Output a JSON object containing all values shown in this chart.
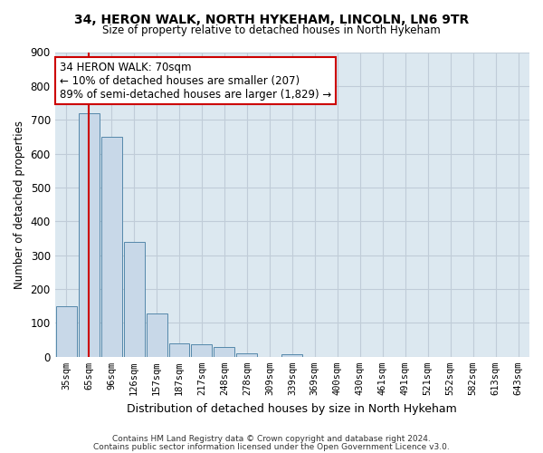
{
  "title1": "34, HERON WALK, NORTH HYKEHAM, LINCOLN, LN6 9TR",
  "title2": "Size of property relative to detached houses in North Hykeham",
  "xlabel": "Distribution of detached houses by size in North Hykeham",
  "ylabel": "Number of detached properties",
  "categories": [
    "35sqm",
    "65sqm",
    "96sqm",
    "126sqm",
    "157sqm",
    "187sqm",
    "217sqm",
    "248sqm",
    "278sqm",
    "309sqm",
    "339sqm",
    "369sqm",
    "400sqm",
    "430sqm",
    "461sqm",
    "491sqm",
    "521sqm",
    "552sqm",
    "582sqm",
    "613sqm",
    "643sqm"
  ],
  "values": [
    150,
    720,
    650,
    340,
    127,
    40,
    38,
    28,
    10,
    0,
    8,
    0,
    0,
    0,
    0,
    0,
    0,
    0,
    0,
    0,
    0
  ],
  "bar_color": "#c8d8e8",
  "bar_edge_color": "#5588aa",
  "vline_x": 1.0,
  "vline_color": "#cc0000",
  "annotation_text": "34 HERON WALK: 70sqm\n← 10% of detached houses are smaller (207)\n89% of semi-detached houses are larger (1,829) →",
  "annotation_box_color": "#ffffff",
  "annotation_box_edge": "#cc0000",
  "ylim": [
    0,
    900
  ],
  "yticks": [
    0,
    100,
    200,
    300,
    400,
    500,
    600,
    700,
    800,
    900
  ],
  "grid_color": "#c0ccd8",
  "bg_color": "#dce8f0",
  "fig_bg_color": "#ffffff",
  "title1_fontsize": 10,
  "title2_fontsize": 9,
  "footer1": "Contains HM Land Registry data © Crown copyright and database right 2024.",
  "footer2": "Contains public sector information licensed under the Open Government Licence v3.0."
}
